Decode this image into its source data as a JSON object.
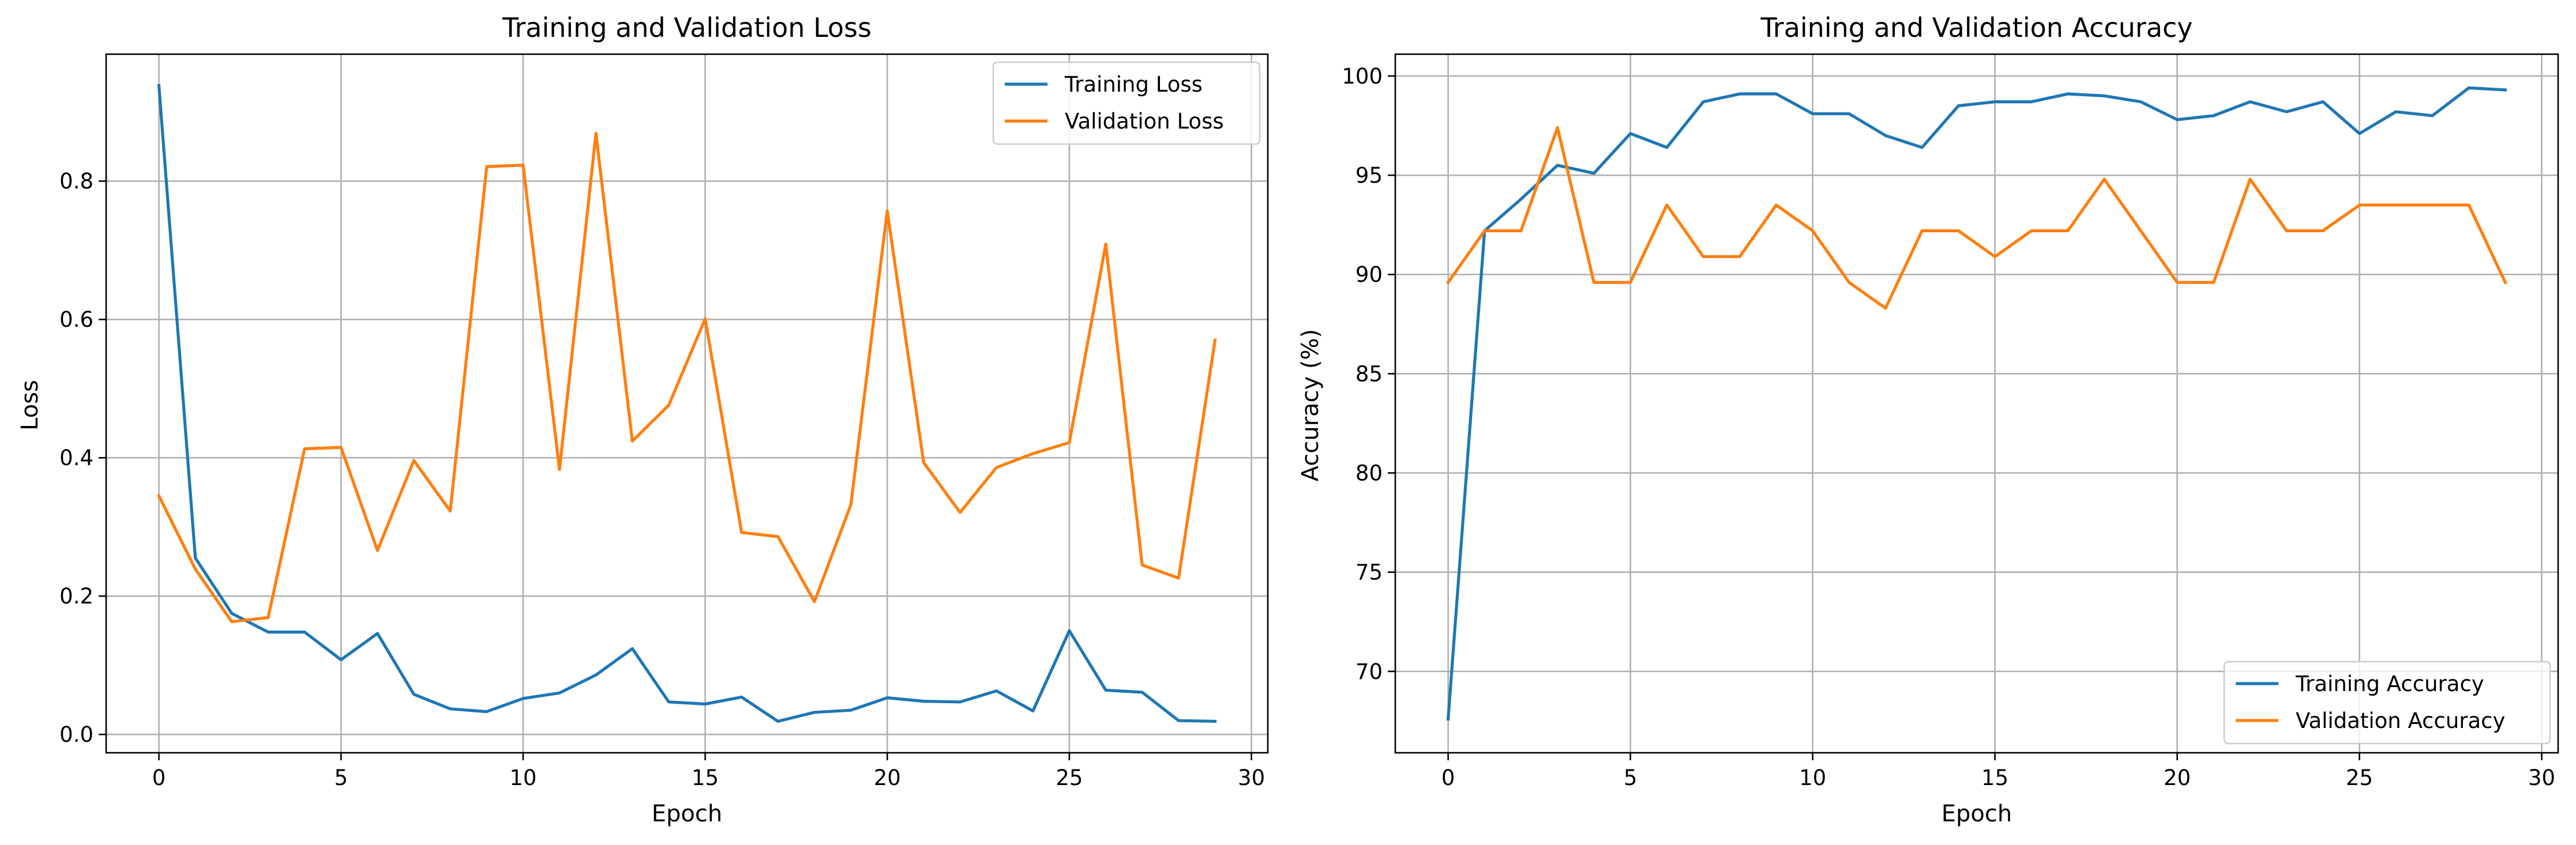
{
  "colors": {
    "training": "#1f77b4",
    "validation": "#ff7f0e"
  },
  "chart_data": [
    {
      "type": "line",
      "title": "Training and Validation Loss",
      "xlabel": "Epoch",
      "ylabel": "Loss",
      "xlim": [
        -1.45,
        30.45
      ],
      "ylim": [
        -0.0265,
        0.9835
      ],
      "x_ticks": [
        0,
        5,
        10,
        15,
        20,
        25,
        30
      ],
      "y_ticks": [
        0.0,
        0.2,
        0.4,
        0.6,
        0.8
      ],
      "y_tick_labels": [
        "0.0",
        "0.2",
        "0.4",
        "0.6",
        "0.8"
      ],
      "grid": true,
      "legend_position": "top-right",
      "x": [
        0,
        1,
        2,
        3,
        4,
        5,
        6,
        7,
        8,
        9,
        10,
        11,
        12,
        13,
        14,
        15,
        16,
        17,
        18,
        19,
        20,
        21,
        22,
        23,
        24,
        25,
        26,
        27,
        28,
        29
      ],
      "series": [
        {
          "name": "Training Loss",
          "color": "#1f77b4",
          "values": [
            0.938,
            0.255,
            0.175,
            0.148,
            0.148,
            0.108,
            0.146,
            0.058,
            0.037,
            0.033,
            0.052,
            0.06,
            0.086,
            0.124,
            0.047,
            0.044,
            0.054,
            0.019,
            0.032,
            0.035,
            0.053,
            0.048,
            0.047,
            0.063,
            0.034,
            0.15,
            0.064,
            0.061,
            0.02,
            0.019
          ]
        },
        {
          "name": "Validation Loss",
          "color": "#ff7f0e",
          "values": [
            0.345,
            0.239,
            0.163,
            0.169,
            0.413,
            0.415,
            0.266,
            0.396,
            0.323,
            0.821,
            0.823,
            0.383,
            0.869,
            0.424,
            0.476,
            0.601,
            0.292,
            0.286,
            0.192,
            0.332,
            0.757,
            0.393,
            0.321,
            0.386,
            0.406,
            0.422,
            0.709,
            0.245,
            0.226,
            0.57
          ]
        }
      ]
    },
    {
      "type": "line",
      "title": "Training and Validation Accuracy",
      "xlabel": "Epoch",
      "ylabel": "Accuracy (%)",
      "xlim": [
        -1.45,
        30.45
      ],
      "ylim": [
        65.9,
        101.1
      ],
      "x_ticks": [
        0,
        5,
        10,
        15,
        20,
        25,
        30
      ],
      "y_ticks": [
        70,
        75,
        80,
        85,
        90,
        95,
        100
      ],
      "y_tick_labels": [
        "70",
        "75",
        "80",
        "85",
        "90",
        "95",
        "100"
      ],
      "grid": true,
      "legend_position": "bottom-right",
      "x": [
        0,
        1,
        2,
        3,
        4,
        5,
        6,
        7,
        8,
        9,
        10,
        11,
        12,
        13,
        14,
        15,
        16,
        17,
        18,
        19,
        20,
        21,
        22,
        23,
        24,
        25,
        26,
        27,
        28,
        29
      ],
      "series": [
        {
          "name": "Training Accuracy",
          "color": "#1f77b4",
          "values": [
            67.6,
            92.2,
            93.8,
            95.5,
            95.1,
            97.1,
            96.4,
            98.7,
            99.1,
            99.1,
            98.1,
            98.1,
            97.0,
            96.4,
            98.5,
            98.7,
            98.7,
            99.1,
            99.0,
            98.7,
            97.8,
            98.0,
            98.7,
            98.2,
            98.7,
            97.1,
            98.2,
            98.0,
            99.4,
            99.3
          ]
        },
        {
          "name": "Validation Accuracy",
          "color": "#ff7f0e",
          "values": [
            89.6,
            92.2,
            92.2,
            97.4,
            89.6,
            89.6,
            93.5,
            90.9,
            90.9,
            93.5,
            92.2,
            89.6,
            88.3,
            92.2,
            92.2,
            90.9,
            92.2,
            92.2,
            94.8,
            92.2,
            89.6,
            89.6,
            94.8,
            92.2,
            92.2,
            93.5,
            93.5,
            93.5,
            93.5,
            89.6
          ]
        }
      ]
    }
  ]
}
